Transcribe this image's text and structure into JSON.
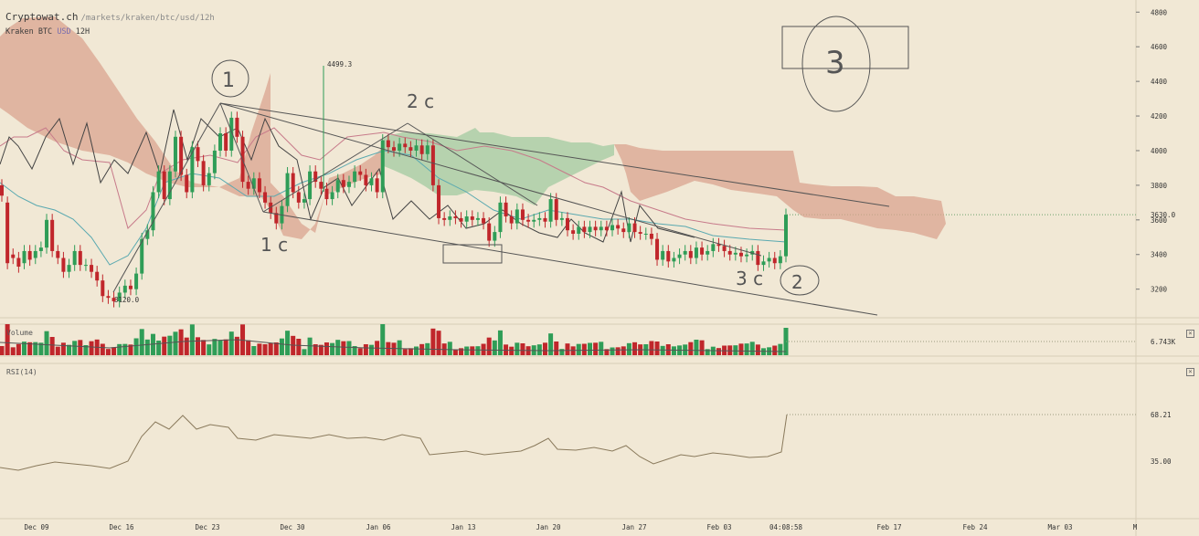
{
  "header": {
    "brand": "Cryptowat.ch",
    "path": "/markets/kraken/btc/usd/12h",
    "exchange_pair": "Kraken BTC",
    "quote": "USD",
    "interval": "12H"
  },
  "volume_pane": {
    "label": "Volume",
    "close": "×"
  },
  "rsi_pane": {
    "label": "RSI(14)",
    "close": "×"
  },
  "colors": {
    "background": "#f1e8d5",
    "up": "#2f9d57",
    "down": "#c0262b",
    "cloud_bear": "#d9a48f",
    "cloud_bull": "#9cc99c",
    "tenkan": "#5aa9b0",
    "kijun": "#c77a8a",
    "chikou": "#444444",
    "rsi": "#8a7a5c",
    "grid": "#d8ceb8"
  },
  "chart_data": {
    "type": "candlestick",
    "price_axis_ticks": [
      4800,
      4600,
      4400,
      4200,
      4000,
      3800,
      3600,
      3400,
      3200
    ],
    "price_ylim": [
      3040,
      4870
    ],
    "x_axis_labels": [
      "Dec 09",
      "Dec 16",
      "Dec 23",
      "Dec 30",
      "Jan 06",
      "Jan 13",
      "Jan 20",
      "Jan 27",
      "Feb 03",
      "04:08:58",
      "Feb 17",
      "Feb 24",
      "Mar 03",
      "M"
    ],
    "last_price": "3630.0",
    "high_annotation": "4499.3",
    "low_annotation": "3120.0",
    "volume_last": "6.743K",
    "rsi_ticks": [
      "68.21",
      "35.00"
    ],
    "rsi_last": 68.21,
    "drawings_text": [
      "2 c",
      "1 c",
      "3 c",
      "3",
      "2",
      "1"
    ],
    "candles": [
      [
        3800,
        3740
      ],
      [
        3700,
        3350
      ],
      [
        3400,
        3380
      ],
      [
        3380,
        3330
      ],
      [
        3350,
        3420
      ],
      [
        3420,
        3370
      ],
      [
        3380,
        3420
      ],
      [
        3420,
        3440
      ],
      [
        3440,
        3600
      ],
      [
        3600,
        3420
      ],
      [
        3420,
        3380
      ],
      [
        3380,
        3300
      ],
      [
        3300,
        3340
      ],
      [
        3340,
        3420
      ],
      [
        3420,
        3340
      ],
      [
        3340,
        3340
      ],
      [
        3340,
        3300
      ],
      [
        3300,
        3250
      ],
      [
        3250,
        3160
      ],
      [
        3160,
        3150
      ],
      [
        3150,
        3130
      ],
      [
        3130,
        3180
      ],
      [
        3180,
        3220
      ],
      [
        3220,
        3200
      ],
      [
        3200,
        3290
      ],
      [
        3290,
        3490
      ],
      [
        3490,
        3540
      ],
      [
        3540,
        3760
      ],
      [
        3760,
        3880
      ],
      [
        3880,
        3720
      ],
      [
        3720,
        3880
      ],
      [
        3880,
        4080
      ],
      [
        4080,
        3860
      ],
      [
        3860,
        3760
      ],
      [
        3760,
        4020
      ],
      [
        4020,
        3940
      ],
      [
        3940,
        3800
      ],
      [
        3800,
        3870
      ],
      [
        3870,
        4000
      ],
      [
        4000,
        4100
      ],
      [
        4100,
        4000
      ],
      [
        4000,
        4190
      ],
      [
        4190,
        4080
      ],
      [
        4080,
        3820
      ],
      [
        3820,
        3780
      ],
      [
        3780,
        3840
      ],
      [
        3840,
        3760
      ],
      [
        3760,
        3700
      ],
      [
        3700,
        3640
      ],
      [
        3640,
        3580
      ],
      [
        3580,
        3680
      ],
      [
        3680,
        3870
      ],
      [
        3870,
        3760
      ],
      [
        3760,
        3700
      ],
      [
        3700,
        3720
      ],
      [
        3720,
        3880
      ],
      [
        3880,
        3820
      ],
      [
        3820,
        3780
      ],
      [
        3780,
        3720
      ],
      [
        3720,
        3760
      ],
      [
        3760,
        3830
      ],
      [
        3830,
        3790
      ],
      [
        3790,
        3820
      ],
      [
        3820,
        3880
      ],
      [
        3880,
        3860
      ],
      [
        3860,
        3800
      ],
      [
        3800,
        3840
      ],
      [
        3840,
        3760
      ],
      [
        3760,
        4060
      ],
      [
        4060,
        4020
      ],
      [
        4020,
        4000
      ],
      [
        4000,
        4040
      ],
      [
        4040,
        4020
      ],
      [
        4020,
        4000
      ],
      [
        4000,
        4030
      ],
      [
        4030,
        3980
      ],
      [
        3980,
        4030
      ],
      [
        4030,
        3800
      ],
      [
        3800,
        3610
      ],
      [
        3610,
        3600
      ],
      [
        3600,
        3620
      ],
      [
        3620,
        3610
      ],
      [
        3610,
        3590
      ],
      [
        3590,
        3620
      ],
      [
        3620,
        3600
      ],
      [
        3600,
        3610
      ],
      [
        3610,
        3580
      ],
      [
        3580,
        3480
      ],
      [
        3480,
        3530
      ],
      [
        3530,
        3700
      ],
      [
        3700,
        3620
      ],
      [
        3620,
        3580
      ],
      [
        3580,
        3660
      ],
      [
        3660,
        3600
      ],
      [
        3600,
        3590
      ],
      [
        3590,
        3600
      ],
      [
        3600,
        3610
      ],
      [
        3610,
        3590
      ],
      [
        3590,
        3720
      ],
      [
        3720,
        3600
      ],
      [
        3600,
        3610
      ],
      [
        3610,
        3540
      ],
      [
        3540,
        3520
      ],
      [
        3520,
        3560
      ],
      [
        3560,
        3530
      ],
      [
        3530,
        3560
      ],
      [
        3560,
        3540
      ],
      [
        3540,
        3560
      ],
      [
        3560,
        3540
      ],
      [
        3540,
        3570
      ],
      [
        3570,
        3550
      ],
      [
        3550,
        3530
      ],
      [
        3530,
        3580
      ],
      [
        3580,
        3530
      ],
      [
        3530,
        3520
      ],
      [
        3520,
        3520
      ],
      [
        3520,
        3490
      ],
      [
        3490,
        3370
      ],
      [
        3370,
        3420
      ],
      [
        3420,
        3360
      ],
      [
        3360,
        3380
      ],
      [
        3380,
        3400
      ],
      [
        3400,
        3420
      ],
      [
        3420,
        3380
      ],
      [
        3380,
        3440
      ],
      [
        3440,
        3400
      ],
      [
        3400,
        3420
      ],
      [
        3420,
        3460
      ],
      [
        3460,
        3450
      ],
      [
        3450,
        3420
      ],
      [
        3420,
        3400
      ],
      [
        3400,
        3410
      ],
      [
        3410,
        3390
      ],
      [
        3390,
        3400
      ],
      [
        3400,
        3420
      ],
      [
        3420,
        3340
      ],
      [
        3340,
        3360
      ],
      [
        3360,
        3380
      ],
      [
        3380,
        3350
      ],
      [
        3350,
        3390
      ],
      [
        3390,
        3630
      ]
    ]
  }
}
